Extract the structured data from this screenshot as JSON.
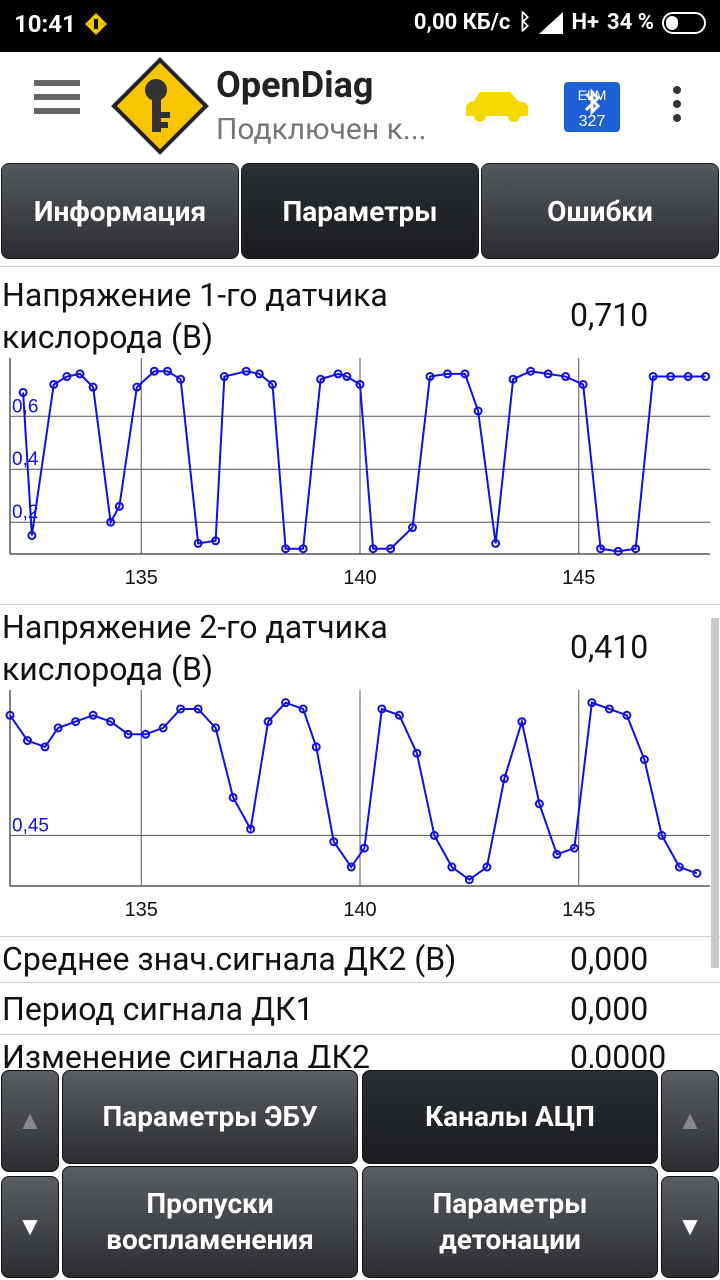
{
  "status_bar": {
    "time": "10:41",
    "net_speed": "0,00 КБ/с",
    "network": "H+",
    "battery": "34 %",
    "battery_level": 0.34,
    "notification_icon": "warning-key-icon"
  },
  "app_bar": {
    "title": "OpenDiag",
    "subtitle": "Подключен к...",
    "menu_icon": "hamburger-icon",
    "car_icon": "car-icon",
    "bt_icon": "elm327-bluetooth-icon",
    "more_icon": "kebab-icon"
  },
  "tabs": [
    {
      "label": "Информация",
      "active": false
    },
    {
      "label": "Параметры",
      "active": true
    },
    {
      "label": "Ошибки",
      "active": false
    }
  ],
  "params": [
    {
      "label_line1": "Напряжение 1-го датчика",
      "label_line2": "кислорода (В)",
      "value": "0,710"
    },
    {
      "label_line1": "Напряжение 2-го датчика",
      "label_line2": "кислорода (В)",
      "value": "0,410"
    },
    {
      "label": "Среднее знач.сигнала ДК2 (В)",
      "value": "0,000"
    },
    {
      "label": "Период сигнала ДК1",
      "value": "0,000"
    },
    {
      "label": "Изменение сигнала ДК2",
      "value": "0,0000"
    }
  ],
  "chart_data": [
    {
      "type": "line",
      "series": [
        {
          "x": [
            132.3,
            132.5,
            133.0,
            133.3,
            133.6,
            133.9,
            134.3,
            134.5,
            134.9,
            135.3,
            135.6,
            135.9,
            136.3,
            136.7,
            136.9,
            137.4,
            137.7,
            138.0,
            138.3,
            138.7,
            139.1,
            139.5,
            139.7,
            140.0,
            140.3,
            140.7,
            141.2,
            141.6,
            142.0,
            142.4,
            142.7,
            143.1,
            143.5,
            143.9,
            144.3,
            144.7,
            145.1,
            145.5,
            145.9,
            146.3,
            146.7,
            147.1,
            147.5,
            147.9
          ],
          "y": [
            0.69,
            0.15,
            0.72,
            0.75,
            0.76,
            0.71,
            0.2,
            0.26,
            0.71,
            0.77,
            0.77,
            0.74,
            0.12,
            0.13,
            0.75,
            0.77,
            0.76,
            0.72,
            0.1,
            0.1,
            0.74,
            0.76,
            0.75,
            0.72,
            0.1,
            0.1,
            0.18,
            0.75,
            0.76,
            0.76,
            0.62,
            0.12,
            0.74,
            0.77,
            0.76,
            0.75,
            0.72,
            0.1,
            0.09,
            0.1,
            0.75,
            0.75,
            0.75,
            0.75
          ]
        }
      ],
      "yticks": [
        "0,2",
        "0,4",
        "0,6"
      ],
      "xticks": [
        "135",
        "140",
        "145"
      ],
      "xlim": [
        132.0,
        148.0
      ],
      "ylim": [
        0.08,
        0.82
      ],
      "grid": true
    },
    {
      "type": "line",
      "series": [
        {
          "x": [
            132.0,
            132.4,
            132.8,
            133.1,
            133.5,
            133.9,
            134.3,
            134.7,
            135.1,
            135.5,
            135.9,
            136.3,
            136.7,
            137.1,
            137.5,
            137.9,
            138.3,
            138.7,
            139.0,
            139.4,
            139.8,
            140.1,
            140.5,
            140.9,
            141.3,
            141.7,
            142.1,
            142.5,
            142.9,
            143.3,
            143.7,
            144.1,
            144.5,
            144.9,
            145.3,
            145.7,
            146.1,
            146.5,
            146.9,
            147.3,
            147.7
          ],
          "y": [
            0.64,
            0.6,
            0.59,
            0.62,
            0.63,
            0.64,
            0.63,
            0.61,
            0.61,
            0.62,
            0.65,
            0.65,
            0.62,
            0.51,
            0.46,
            0.63,
            0.66,
            0.65,
            0.59,
            0.44,
            0.4,
            0.43,
            0.65,
            0.64,
            0.58,
            0.45,
            0.4,
            0.38,
            0.4,
            0.54,
            0.63,
            0.5,
            0.42,
            0.43,
            0.66,
            0.65,
            0.64,
            0.57,
            0.45,
            0.4,
            0.39
          ]
        }
      ],
      "yticks": [
        "0,45"
      ],
      "xticks": [
        "135",
        "140",
        "145"
      ],
      "xlim": [
        132.0,
        148.0
      ],
      "ylim": [
        0.37,
        0.68
      ],
      "grid": true
    }
  ],
  "bottom_buttons": {
    "up_left": "▲",
    "down_left": "▼",
    "up_right": "▲",
    "down_right": "▼",
    "ecu_params": "Параметры ЭБУ",
    "adc_channels": "Каналы АЦП",
    "misfire_line1": "Пропуски",
    "misfire_line2": "воспламенения",
    "knock_line1": "Параметры",
    "knock_line2": "детонации"
  }
}
